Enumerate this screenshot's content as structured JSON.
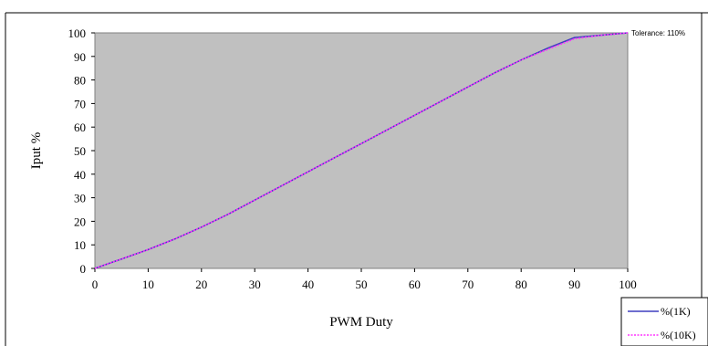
{
  "chart_data": {
    "type": "line",
    "title": "",
    "xlabel": "PWM Duty",
    "ylabel": "Iput %",
    "xlim": [
      0,
      100
    ],
    "ylim": [
      0,
      100
    ],
    "x_ticks": [
      0,
      10,
      20,
      30,
      40,
      50,
      60,
      70,
      80,
      90,
      100
    ],
    "y_ticks": [
      0,
      10,
      20,
      30,
      40,
      50,
      60,
      70,
      80,
      90,
      100
    ],
    "grid": false,
    "plot_background": "#c0c0c0",
    "annotation": "Tolerance: 110%",
    "legend_position": "bottom-right, outside",
    "series": [
      {
        "name": "%(1K)",
        "color": "#3f3fbf",
        "dash": "solid",
        "x": [
          0,
          5,
          10,
          15,
          20,
          25,
          30,
          35,
          40,
          45,
          50,
          55,
          60,
          65,
          70,
          75,
          80,
          85,
          90,
          95,
          100
        ],
        "y": [
          0,
          4,
          8,
          12.5,
          17.5,
          23,
          29,
          35,
          41,
          47,
          53,
          59,
          65,
          71,
          77,
          83,
          88.5,
          93.5,
          98,
          99,
          100
        ]
      },
      {
        "name": "%(10K)",
        "color": "#ff33ff",
        "dash": "dotted",
        "x": [
          0,
          5,
          10,
          15,
          20,
          25,
          30,
          35,
          40,
          45,
          50,
          55,
          60,
          65,
          70,
          75,
          80,
          85,
          90,
          95,
          100
        ],
        "y": [
          0,
          4,
          8,
          12.5,
          17.5,
          23,
          29,
          35,
          41,
          47,
          53,
          59,
          65,
          71,
          77,
          83,
          88.5,
          93,
          97.5,
          99,
          100
        ]
      }
    ]
  }
}
